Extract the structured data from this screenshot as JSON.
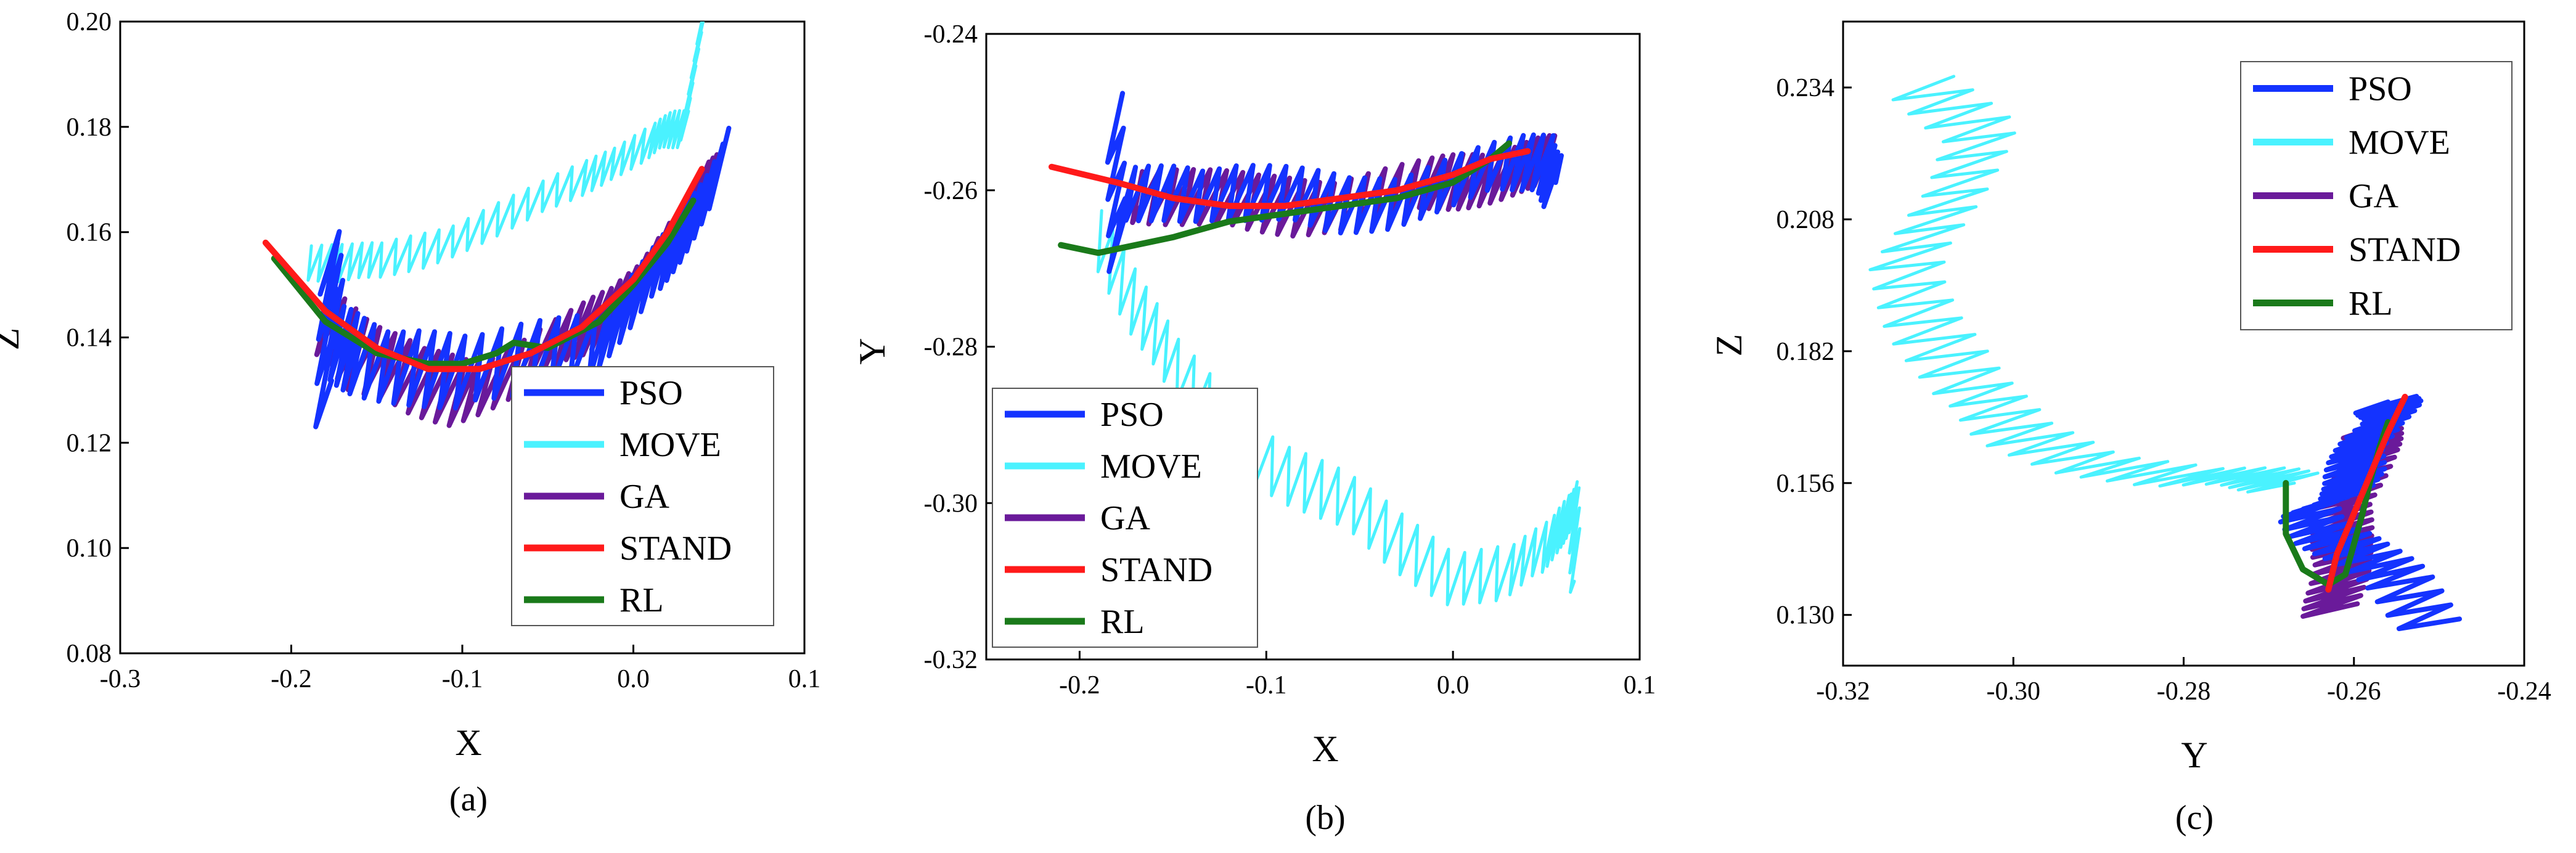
{
  "figure": {
    "colors": {
      "PSO": "#1433ff",
      "MOVE": "#4af2ff",
      "GA": "#6a1a9a",
      "STAND": "#ff1a1a",
      "RL": "#1a7a1a"
    },
    "legend_labels": [
      "PSO",
      "MOVE",
      "GA",
      "STAND",
      "RL"
    ]
  },
  "chart_data": [
    {
      "type": "line",
      "caption": "(a)",
      "xlabel": "X",
      "ylabel": "Z",
      "xlim": [
        -0.3,
        0.1
      ],
      "ylim": [
        0.08,
        0.2
      ],
      "xticks": [
        "-0.3",
        "-0.2",
        "-0.1",
        "0.0",
        "0.1"
      ],
      "xtick_vals": [
        -0.3,
        -0.2,
        -0.1,
        0.0,
        0.1
      ],
      "yticks": [
        "0.08",
        "0.10",
        "0.12",
        "0.14",
        "0.16",
        "0.18",
        "0.20"
      ],
      "ytick_vals": [
        0.08,
        0.1,
        0.12,
        0.14,
        0.16,
        0.18,
        0.2
      ],
      "legend_position": "bottom-right",
      "series": [
        {
          "name": "PSO",
          "x": [
            -0.18,
            -0.178,
            -0.175,
            -0.16,
            -0.13,
            -0.1,
            -0.06,
            -0.02,
            0.0,
            0.02,
            0.035,
            0.05,
            0.05
          ],
          "y": [
            0.127,
            0.155,
            0.138,
            0.137,
            0.135,
            0.132,
            0.136,
            0.14,
            0.147,
            0.155,
            0.163,
            0.172,
            0.172
          ],
          "jitter": [
            0.006,
            0.008
          ]
        },
        {
          "name": "MOVE",
          "x": [
            -0.19,
            -0.17,
            -0.15,
            -0.12,
            -0.09,
            -0.06,
            -0.03,
            -0.01,
            0.01,
            0.02,
            0.03,
            0.035,
            0.04
          ],
          "y": [
            0.155,
            0.154,
            0.154,
            0.157,
            0.161,
            0.165,
            0.17,
            0.174,
            0.177,
            0.179,
            0.18,
            0.19,
            0.2
          ],
          "jitter": [
            0.003,
            0.004
          ]
        },
        {
          "name": "GA",
          "x": [
            -0.18,
            -0.16,
            -0.13,
            -0.1,
            -0.07,
            -0.04,
            -0.02,
            0.0,
            0.02,
            0.035,
            0.045
          ],
          "y": [
            0.145,
            0.136,
            0.131,
            0.13,
            0.134,
            0.139,
            0.143,
            0.15,
            0.158,
            0.166,
            0.17
          ],
          "jitter": [
            0.008,
            0.007
          ]
        },
        {
          "name": "STAND",
          "x": [
            -0.215,
            -0.18,
            -0.15,
            -0.12,
            -0.09,
            -0.06,
            -0.03,
            0.0,
            0.02,
            0.04
          ],
          "y": [
            0.158,
            0.145,
            0.138,
            0.134,
            0.134,
            0.137,
            0.142,
            0.151,
            0.16,
            0.172
          ],
          "jitter": [
            0,
            0
          ]
        },
        {
          "name": "RL",
          "x": [
            -0.21,
            -0.18,
            -0.15,
            -0.12,
            -0.1,
            -0.08,
            -0.07,
            -0.05,
            -0.02,
            0.0,
            0.02,
            0.035
          ],
          "y": [
            0.155,
            0.143,
            0.137,
            0.135,
            0.135,
            0.137,
            0.139,
            0.138,
            0.143,
            0.15,
            0.158,
            0.166
          ],
          "jitter": [
            0,
            0
          ]
        }
      ]
    },
    {
      "type": "line",
      "caption": "(b)",
      "xlabel": "X",
      "ylabel": "Y",
      "xlim": [
        -0.25,
        0.1
      ],
      "ylim": [
        -0.32,
        -0.24
      ],
      "xticks": [
        "-0.2",
        "-0.1",
        "0.0",
        "0.1"
      ],
      "xtick_vals": [
        -0.2,
        -0.1,
        0.0,
        0.1
      ],
      "yticks": [
        "-0.32",
        "-0.30",
        "-0.28",
        "-0.26",
        "-0.24"
      ],
      "ytick_vals": [
        -0.32,
        -0.3,
        -0.28,
        -0.26,
        -0.24
      ],
      "legend_position": "bottom-left",
      "series": [
        {
          "name": "PSO",
          "x": [
            -0.18,
            -0.18,
            -0.175,
            -0.15,
            -0.12,
            -0.09,
            -0.06,
            -0.03,
            0.0,
            0.03,
            0.05,
            0.055
          ],
          "y": [
            -0.25,
            -0.267,
            -0.261,
            -0.26,
            -0.26,
            -0.261,
            -0.262,
            -0.261,
            -0.259,
            -0.257,
            -0.256,
            -0.259
          ],
          "jitter": [
            0.005,
            0.004
          ]
        },
        {
          "name": "MOVE",
          "x": [
            -0.19,
            -0.17,
            -0.15,
            -0.12,
            -0.09,
            -0.06,
            -0.03,
            0.0,
            0.03,
            0.05,
            0.06,
            0.065,
            0.065
          ],
          "y": [
            -0.265,
            -0.275,
            -0.283,
            -0.29,
            -0.296,
            -0.3,
            -0.305,
            -0.309,
            -0.309,
            -0.306,
            -0.302,
            -0.3,
            -0.31
          ],
          "jitter": [
            0.003,
            0.004
          ]
        },
        {
          "name": "GA",
          "x": [
            -0.17,
            -0.14,
            -0.11,
            -0.08,
            -0.05,
            -0.02,
            0.0,
            0.02,
            0.04,
            0.05
          ],
          "y": [
            -0.26,
            -0.261,
            -0.262,
            -0.262,
            -0.261,
            -0.26,
            -0.259,
            -0.258,
            -0.257,
            -0.257
          ],
          "jitter": [
            0.006,
            0.004
          ]
        },
        {
          "name": "STAND",
          "x": [
            -0.215,
            -0.18,
            -0.15,
            -0.12,
            -0.09,
            -0.06,
            -0.03,
            0.0,
            0.02,
            0.04
          ],
          "y": [
            -0.257,
            -0.259,
            -0.261,
            -0.262,
            -0.262,
            -0.261,
            -0.26,
            -0.258,
            -0.256,
            -0.255
          ],
          "jitter": [
            0,
            0
          ]
        },
        {
          "name": "RL",
          "x": [
            -0.21,
            -0.19,
            -0.17,
            -0.15,
            -0.12,
            -0.09,
            -0.06,
            -0.03,
            0.0,
            0.02,
            0.03
          ],
          "y": [
            -0.267,
            -0.268,
            -0.267,
            -0.266,
            -0.264,
            -0.263,
            -0.262,
            -0.261,
            -0.259,
            -0.256,
            -0.254
          ],
          "jitter": [
            0,
            0
          ]
        }
      ]
    },
    {
      "type": "line",
      "caption": "(c)",
      "xlabel": "Y",
      "ylabel": "Z",
      "xlim": [
        -0.32,
        -0.24
      ],
      "ylim": [
        0.12,
        0.247
      ],
      "xticks": [
        "-0.32",
        "-0.30",
        "-0.28",
        "-0.26",
        "-0.24"
      ],
      "xtick_vals": [
        -0.32,
        -0.3,
        -0.28,
        -0.26,
        -0.24
      ],
      "yticks": [
        "0.130",
        "0.156",
        "0.182",
        "0.208",
        "0.234"
      ],
      "ytick_vals": [
        0.13,
        0.156,
        0.182,
        0.208,
        0.234
      ],
      "legend_position": "top-right",
      "series": [
        {
          "name": "PSO",
          "x": [
            -0.25,
            -0.255,
            -0.26,
            -0.263,
            -0.265,
            -0.262,
            -0.26,
            -0.259,
            -0.258,
            -0.256,
            -0.256
          ],
          "y": [
            0.128,
            0.137,
            0.142,
            0.146,
            0.151,
            0.153,
            0.157,
            0.162,
            0.166,
            0.17,
            0.172
          ],
          "jitter": [
            0.004,
            0.002
          ]
        },
        {
          "name": "MOVE",
          "x": [
            -0.31,
            -0.304,
            -0.308,
            -0.312,
            -0.31,
            -0.306,
            -0.3,
            -0.29,
            -0.28,
            -0.272,
            -0.267
          ],
          "y": [
            0.235,
            0.225,
            0.212,
            0.2,
            0.187,
            0.175,
            0.166,
            0.16,
            0.157,
            0.157,
            0.156
          ],
          "jitter": [
            0.005,
            0.002
          ]
        },
        {
          "name": "GA",
          "x": [
            -0.262,
            -0.262,
            -0.262,
            -0.261,
            -0.26,
            -0.259,
            -0.258,
            -0.257
          ],
          "y": [
            0.131,
            0.136,
            0.142,
            0.148,
            0.154,
            0.16,
            0.164,
            0.168
          ],
          "jitter": [
            0.004,
            0.002
          ]
        },
        {
          "name": "STAND",
          "x": [
            -0.263,
            -0.262,
            -0.26,
            -0.258,
            -0.256,
            -0.254
          ],
          "y": [
            0.135,
            0.142,
            0.15,
            0.158,
            0.166,
            0.173
          ],
          "jitter": [
            0,
            0
          ]
        },
        {
          "name": "RL",
          "x": [
            -0.268,
            -0.268,
            -0.266,
            -0.263,
            -0.261,
            -0.26,
            -0.259,
            -0.258,
            -0.257,
            -0.256
          ],
          "y": [
            0.156,
            0.146,
            0.139,
            0.136,
            0.138,
            0.144,
            0.15,
            0.157,
            0.163,
            0.168
          ],
          "jitter": [
            0,
            0
          ]
        }
      ]
    }
  ]
}
